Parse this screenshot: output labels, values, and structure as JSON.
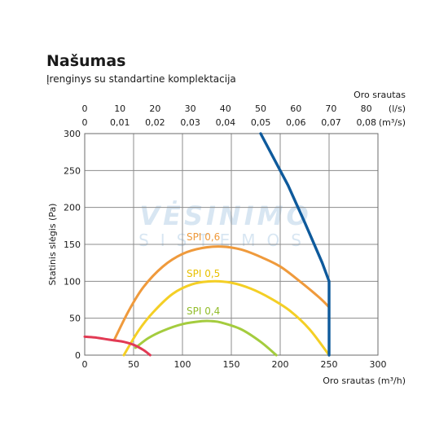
{
  "header": {
    "title": "Našumas",
    "subtitle": "Įrenginys su standartine komplektacija"
  },
  "watermark": {
    "line1": "VĖSINIMO",
    "line2": "SISTEMOS",
    "color": "#b9d3e9"
  },
  "chart_data": {
    "type": "line",
    "x_axis_bottom": {
      "label": "Oro srautas (m³/h)",
      "range": [
        0,
        300
      ],
      "ticks": [
        0,
        50,
        100,
        150,
        200,
        250,
        300
      ],
      "tick_labels": [
        "0",
        "50",
        "100",
        "150",
        "200",
        "250",
        "300"
      ]
    },
    "x_axis_top_ls": {
      "label": "Oro srautas",
      "unit": "(l/s)",
      "range": [
        0,
        83.33
      ],
      "ticks": [
        0,
        10,
        20,
        30,
        40,
        50,
        60,
        70,
        80
      ],
      "tick_labels": [
        "0",
        "10",
        "20",
        "30",
        "40",
        "50",
        "60",
        "70",
        "80"
      ]
    },
    "x_axis_top_m3s": {
      "unit": "(m³/s)",
      "range": [
        0,
        0.0833
      ],
      "ticks": [
        0,
        0.01,
        0.02,
        0.03,
        0.04,
        0.05,
        0.06,
        0.07,
        0.08
      ],
      "tick_labels": [
        "0",
        "0,01",
        "0,02",
        "0,03",
        "0,04",
        "0,05",
        "0,06",
        "0,07",
        "0,08"
      ]
    },
    "y_axis": {
      "label": "Statinis slėgis (Pa)",
      "range": [
        0,
        300
      ],
      "ticks": [
        0,
        50,
        100,
        150,
        200,
        250,
        300
      ],
      "tick_labels": [
        "0",
        "50",
        "100",
        "150",
        "200",
        "250",
        "300"
      ]
    },
    "grid": true,
    "series": [
      {
        "name": "",
        "color": "#0e5a9c",
        "x": [
          180,
          208,
          225,
          243,
          250,
          250,
          250
        ],
        "y": [
          300,
          230,
          180,
          125,
          100,
          50,
          0
        ]
      },
      {
        "name": "SPI 0,6",
        "color": "#ef9a3c",
        "x": [
          30,
          45,
          60,
          80,
          100,
          120,
          140,
          160,
          180,
          200,
          220,
          240,
          250
        ],
        "y": [
          20,
          60,
          92,
          120,
          137,
          145,
          147,
          143,
          133,
          120,
          100,
          78,
          65
        ]
      },
      {
        "name": "SPI 0,5",
        "color": "#f4cf25",
        "x": [
          40,
          55,
          70,
          90,
          110,
          130,
          150,
          170,
          190,
          210,
          230,
          250
        ],
        "y": [
          0,
          33,
          58,
          83,
          96,
          100,
          98,
          90,
          77,
          60,
          35,
          0
        ]
      },
      {
        "name": "SPI 0,4",
        "color": "#a4cc3e",
        "x": [
          52,
          65,
          80,
          100,
          120,
          130,
          140,
          160,
          180,
          196
        ],
        "y": [
          10,
          23,
          33,
          42,
          46,
          46,
          44,
          35,
          18,
          0
        ]
      },
      {
        "name": "",
        "color": "#e23a54",
        "x": [
          0,
          10,
          20,
          30,
          40,
          50,
          60,
          67
        ],
        "y": [
          25,
          24,
          22,
          20,
          18,
          14,
          7,
          0
        ]
      }
    ]
  }
}
